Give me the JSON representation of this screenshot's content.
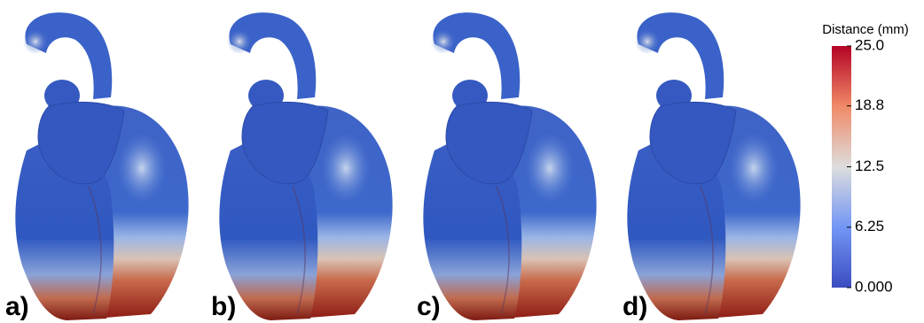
{
  "figure": {
    "panels": [
      {
        "label": "a)"
      },
      {
        "label": "b)"
      },
      {
        "label": "c)"
      },
      {
        "label": "d)"
      }
    ],
    "colorbar": {
      "title": "Distance (mm)",
      "lim": [
        0,
        25
      ],
      "ticks": [
        {
          "value": 0,
          "label": "0.000"
        },
        6.25,
        12.5,
        18.8,
        {
          "value": 25,
          "label": "25.0"
        }
      ],
      "colors": [
        "#3b4cc0",
        "#7396f5",
        "#dddddd",
        "#f08a67",
        "#b40426"
      ]
    }
  }
}
